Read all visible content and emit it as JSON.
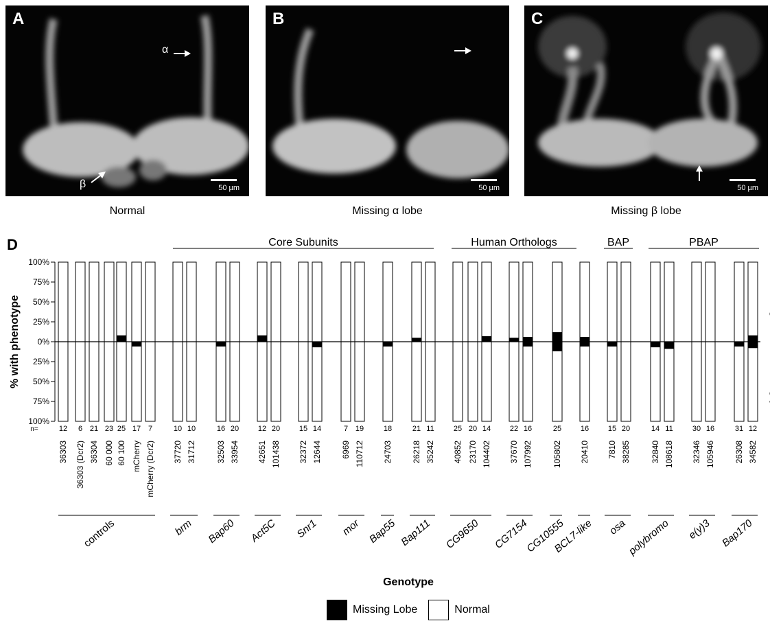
{
  "panels": [
    {
      "letter": "A",
      "caption": "Normal",
      "scale": "50 µm",
      "alpha": "α",
      "beta": "β"
    },
    {
      "letter": "B",
      "caption": "Missing α lobe",
      "scale": "50 µm"
    },
    {
      "letter": "C",
      "caption": "Missing β lobe",
      "scale": "50 µm"
    }
  ],
  "chart_data": {
    "type": "bar",
    "panel_letter": "D",
    "ylabel": "% with phenotype",
    "xlabel": "Genotype",
    "right_label_top": "Missing α",
    "right_label_bottom": "Missing β",
    "y_ticks": [
      "100%",
      "75%",
      "50%",
      "25%",
      "0%",
      "25%",
      "50%",
      "75%",
      "100%"
    ],
    "n_label": "n=",
    "top_groups": [
      "Core Subunits",
      "Human Orthologs",
      "BAP",
      "PBAP"
    ],
    "groups": [
      "controls",
      "brm",
      "Bap60",
      "Act5C",
      "Snr1",
      "mor",
      "Bap55",
      "Bap111",
      "CG9650",
      "CG7154",
      "CG10555",
      "BCL7-like",
      "osa",
      "polybromo",
      "e(y)3",
      "Bap170"
    ],
    "legend": [
      {
        "label": "Missing Lobe",
        "color": "#000000"
      },
      {
        "label": "Normal",
        "color": "#ffffff"
      }
    ],
    "bars": [
      {
        "line": "36303",
        "n": "12",
        "group": "controls",
        "missing_alpha": 0,
        "missing_beta": 0
      },
      {
        "line": "36303 (Dcr2)",
        "n": "6",
        "group": "controls",
        "missing_alpha": 0,
        "missing_beta": 0
      },
      {
        "line": "36304",
        "n": "21",
        "group": "controls",
        "missing_alpha": 0,
        "missing_beta": 0
      },
      {
        "line": "60 000",
        "n": "23",
        "group": "controls",
        "missing_alpha": 0,
        "missing_beta": 0
      },
      {
        "line": "60 100",
        "n": "25",
        "group": "controls",
        "missing_alpha": 8,
        "missing_beta": 0
      },
      {
        "line": "mCherry",
        "n": "17",
        "group": "controls",
        "missing_alpha": 0,
        "missing_beta": 6
      },
      {
        "line": "mCherry (Dcr2)",
        "n": "7",
        "group": "controls",
        "missing_alpha": 0,
        "missing_beta": 0
      },
      {
        "line": "37720",
        "n": "10",
        "group": "brm",
        "missing_alpha": 0,
        "missing_beta": 0
      },
      {
        "line": "31712",
        "n": "10",
        "group": "brm",
        "missing_alpha": 0,
        "missing_beta": 0
      },
      {
        "line": "32503",
        "n": "16",
        "group": "Bap60",
        "missing_alpha": 0,
        "missing_beta": 6
      },
      {
        "line": "33954",
        "n": "20",
        "group": "Bap60",
        "missing_alpha": 0,
        "missing_beta": 0
      },
      {
        "line": "42651",
        "n": "12",
        "group": "Act5C",
        "missing_alpha": 8,
        "missing_beta": 0
      },
      {
        "line": "101438",
        "n": "20",
        "group": "Act5C",
        "missing_alpha": 0,
        "missing_beta": 0
      },
      {
        "line": "32372",
        "n": "15",
        "group": "Snr1",
        "missing_alpha": 0,
        "missing_beta": 0
      },
      {
        "line": "12644",
        "n": "14",
        "group": "Snr1",
        "missing_alpha": 0,
        "missing_beta": 7
      },
      {
        "line": "6969",
        "n": "7",
        "group": "mor",
        "missing_alpha": 0,
        "missing_beta": 0
      },
      {
        "line": "110712",
        "n": "19",
        "group": "mor",
        "missing_alpha": 0,
        "missing_beta": 0
      },
      {
        "line": "24703",
        "n": "18",
        "group": "Bap55",
        "missing_alpha": 0,
        "missing_beta": 6
      },
      {
        "line": "26218",
        "n": "21",
        "group": "Bap111",
        "missing_alpha": 5,
        "missing_beta": 0
      },
      {
        "line": "35242",
        "n": "11",
        "group": "Bap111",
        "missing_alpha": 0,
        "missing_beta": 0
      },
      {
        "line": "40852",
        "n": "25",
        "group": "CG9650",
        "missing_alpha": 0,
        "missing_beta": 0
      },
      {
        "line": "23170",
        "n": "20",
        "group": "CG9650",
        "missing_alpha": 0,
        "missing_beta": 0
      },
      {
        "line": "104402",
        "n": "14",
        "group": "CG9650",
        "missing_alpha": 7,
        "missing_beta": 0
      },
      {
        "line": "37670",
        "n": "22",
        "group": "CG7154",
        "missing_alpha": 5,
        "missing_beta": 0
      },
      {
        "line": "107992",
        "n": "16",
        "group": "CG7154",
        "missing_alpha": 6,
        "missing_beta": 6
      },
      {
        "line": "105802",
        "n": "25",
        "group": "CG10555",
        "missing_alpha": 12,
        "missing_beta": 12
      },
      {
        "line": "20410",
        "n": "16",
        "group": "BCL7-like",
        "missing_alpha": 6,
        "missing_beta": 6
      },
      {
        "line": "7810",
        "n": "15",
        "group": "osa",
        "missing_alpha": 0,
        "missing_beta": 6
      },
      {
        "line": "38285",
        "n": "20",
        "group": "osa",
        "missing_alpha": 0,
        "missing_beta": 0
      },
      {
        "line": "32840",
        "n": "14",
        "group": "polybromo",
        "missing_alpha": 0,
        "missing_beta": 7
      },
      {
        "line": "108618",
        "n": "11",
        "group": "polybromo",
        "missing_alpha": 0,
        "missing_beta": 9
      },
      {
        "line": "32346",
        "n": "30",
        "group": "e(y)3",
        "missing_alpha": 0,
        "missing_beta": 0
      },
      {
        "line": "105946",
        "n": "16",
        "group": "e(y)3",
        "missing_alpha": 0,
        "missing_beta": 0
      },
      {
        "line": "26308",
        "n": "31",
        "group": "Bap170",
        "missing_alpha": 0,
        "missing_beta": 6
      },
      {
        "line": "34582",
        "n": "12",
        "group": "Bap170",
        "missing_alpha": 8,
        "missing_beta": 8
      }
    ]
  }
}
